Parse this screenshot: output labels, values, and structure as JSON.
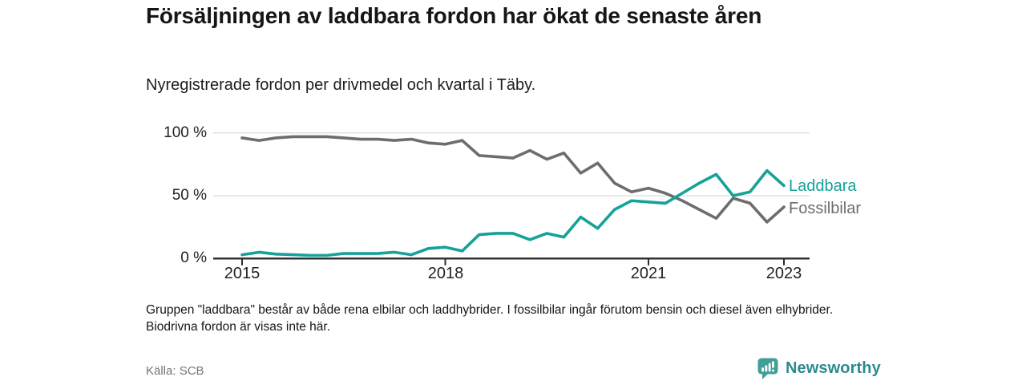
{
  "header": {
    "title": "Försäljningen av laddbara fordon har ökat de senaste åren",
    "subtitle": "Nyregistrerade fordon per drivmedel och kvartal i Täby."
  },
  "chart_data": {
    "type": "line",
    "title": "Nyregistrerade fordon per drivmedel och kvartal i Täby",
    "x": [
      "2015K1",
      "2015K2",
      "2015K3",
      "2015K4",
      "2016K1",
      "2016K2",
      "2016K3",
      "2016K4",
      "2017K1",
      "2017K2",
      "2017K3",
      "2017K4",
      "2018K1",
      "2018K2",
      "2018K3",
      "2018K4",
      "2019K1",
      "2019K2",
      "2019K3",
      "2019K4",
      "2020K1",
      "2020K2",
      "2020K3",
      "2020K4",
      "2021K1",
      "2021K2",
      "2021K3",
      "2021K4",
      "2022K1",
      "2022K2",
      "2022K3",
      "2022K4",
      "2023K1"
    ],
    "series": [
      {
        "name": "Laddbara",
        "color": "#16a199",
        "values": [
          3,
          5,
          3.5,
          3,
          2.5,
          2.5,
          4,
          4,
          4,
          5,
          3,
          8,
          9,
          6,
          19,
          20,
          20,
          15,
          20,
          17,
          33,
          24,
          39,
          46,
          45,
          44,
          52,
          60,
          67,
          50,
          53,
          70,
          58
        ]
      },
      {
        "name": "Fossilbilar",
        "color": "#6d6d6d",
        "values": [
          96,
          94,
          96,
          97,
          97,
          97,
          96,
          95,
          95,
          94,
          95,
          92,
          91,
          94,
          82,
          81,
          80,
          86,
          79,
          84,
          68,
          76,
          60,
          53,
          56,
          52,
          46,
          39,
          32,
          48,
          44,
          29,
          41
        ]
      }
    ],
    "ylabel": "",
    "xlabel": "",
    "ylim": [
      0,
      100
    ],
    "y_unit": "%",
    "y_ticks": [
      {
        "value": 100,
        "label": "100 %"
      },
      {
        "value": 50,
        "label": "50 %"
      },
      {
        "value": 0,
        "label": "0 %"
      }
    ],
    "x_ticks": [
      {
        "year": 2015,
        "label": "2015"
      },
      {
        "year": 2018,
        "label": "2018"
      },
      {
        "year": 2021,
        "label": "2021"
      },
      {
        "year": 2023,
        "label": "2023"
      }
    ],
    "grid": "horizontal",
    "legend_position": "line-end-labels"
  },
  "footer": {
    "note": "Gruppen \"laddbara\" består av både rena elbilar och laddhybrider. I fossilbilar ingår förutom bensin och diesel även elhybrider. Biodrivna fordon är visas inte här.",
    "source": "Källa: SCB",
    "brand": {
      "name": "Newsworthy",
      "icon_color": "#40a096",
      "text_color": "#2d8a8e"
    }
  },
  "colors": {
    "accent_teal": "#16a199",
    "line_gray": "#6d6d6d",
    "gridline": "#dcdcdc",
    "axis": "#2b2b2b"
  }
}
